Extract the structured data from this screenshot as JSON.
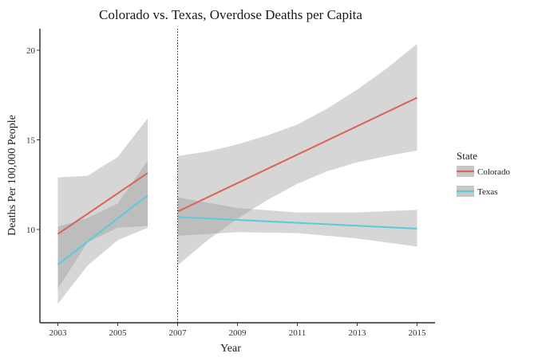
{
  "chart_data": {
    "type": "line",
    "title": "Colorado vs. Texas, Overdose Deaths per Capita",
    "xlabel": "Year",
    "ylabel": "Deaths Per 100,000 People",
    "xlim": [
      2002.4,
      2015.6
    ],
    "ylim": [
      4.8,
      21.2
    ],
    "x_ticks": [
      2003,
      2005,
      2007,
      2009,
      2011,
      2013,
      2015
    ],
    "y_ticks": [
      10,
      15,
      20
    ],
    "reference_line_x": 2007,
    "grid": false,
    "legend": {
      "title": "State",
      "position": "right"
    },
    "series": [
      {
        "name": "Colorado",
        "color": "#d9645a",
        "segments": [
          {
            "x": [
              2003,
              2006
            ],
            "y": [
              9.75,
              13.15
            ],
            "band_x": [
              2003,
              2004,
              2005,
              2006
            ],
            "band_lower": [
              6.7,
              9.3,
              10.1,
              10.2
            ],
            "band_upper": [
              12.9,
              13.0,
              14.05,
              16.2
            ]
          },
          {
            "x": [
              2007,
              2015
            ],
            "y": [
              11.0,
              17.35
            ],
            "band_x": [
              2007,
              2008,
              2009,
              2010,
              2011,
              2012,
              2013,
              2014,
              2015
            ],
            "band_lower": [
              8.0,
              9.4,
              10.6,
              11.65,
              12.55,
              13.25,
              13.75,
              14.1,
              14.4
            ],
            "band_upper": [
              14.1,
              14.35,
              14.75,
              15.25,
              15.85,
              16.75,
              17.8,
              19.0,
              20.35
            ]
          }
        ]
      },
      {
        "name": "Texas",
        "color": "#5bcbd9",
        "segments": [
          {
            "x": [
              2003,
              2006
            ],
            "y": [
              8.05,
              11.9
            ],
            "band_x": [
              2003,
              2004,
              2005,
              2006
            ],
            "band_lower": [
              5.85,
              8.0,
              9.4,
              10.1
            ],
            "band_upper": [
              10.15,
              10.65,
              11.45,
              13.85
            ]
          },
          {
            "x": [
              2007,
              2015
            ],
            "y": [
              10.7,
              10.05
            ],
            "band_x": [
              2007,
              2009,
              2011,
              2013,
              2015
            ],
            "band_lower": [
              9.65,
              9.85,
              9.8,
              9.5,
              9.05
            ],
            "band_upper": [
              11.8,
              11.2,
              10.95,
              10.95,
              11.1
            ]
          }
        ]
      }
    ]
  }
}
